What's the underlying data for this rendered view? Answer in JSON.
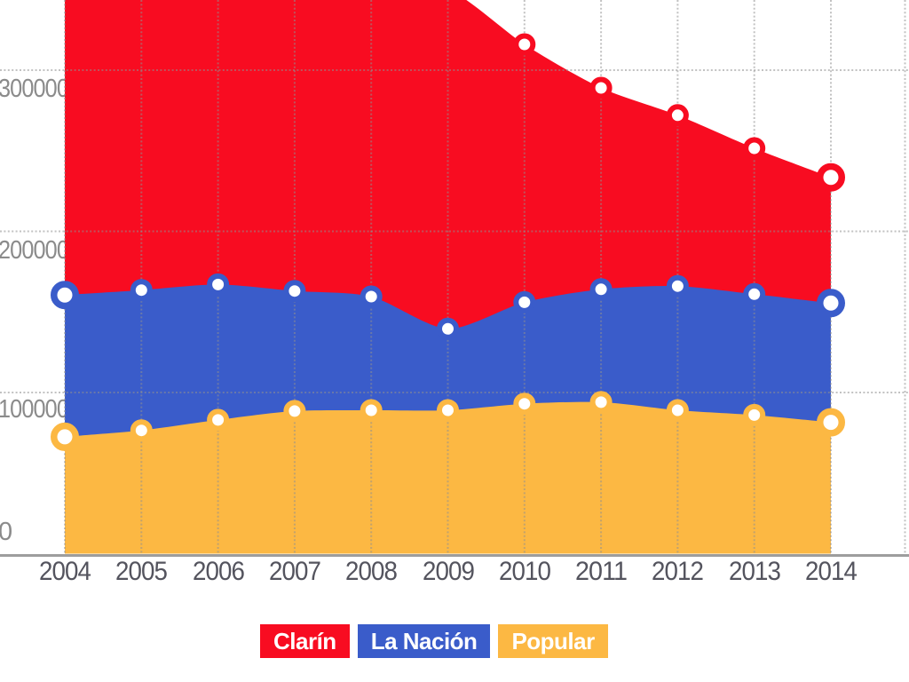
{
  "chart_data": {
    "type": "area",
    "stacked": false,
    "grid": true,
    "legend_position": "bottom",
    "x": [
      "2004",
      "2005",
      "2006",
      "2007",
      "2008",
      "2009",
      "2010",
      "2011",
      "2012",
      "2013",
      "2014"
    ],
    "series": [
      {
        "name": "Clarín",
        "color": "#F80C21",
        "values": [
          null,
          null,
          null,
          null,
          null,
          null,
          316000,
          289000,
          272000,
          251500,
          233500
        ]
      },
      {
        "name": "La Nación",
        "color": "#3A5CCA",
        "values": [
          160500,
          163500,
          167000,
          163000,
          159500,
          139500,
          156000,
          164000,
          166000,
          161000,
          155500
        ]
      },
      {
        "name": "Popular",
        "color": "#FCB843",
        "values": [
          72500,
          76500,
          83000,
          88500,
          89000,
          89000,
          93000,
          94000,
          89000,
          86000,
          81500
        ]
      }
    ],
    "y_ticks": [
      {
        "value": 0,
        "label": "0"
      },
      {
        "value": 100000,
        "label": "100000"
      },
      {
        "value": 200000,
        "label": "200000"
      },
      {
        "value": 300000,
        "label": "300000"
      }
    ],
    "ylim_visible": [
      0,
      342000
    ],
    "clipping_note": "Clarín 2004–2009 points lie above the cropped top edge of the plot",
    "offscreen_render_value": 350000,
    "marker_style": "white center with colored ring; first and last points larger"
  },
  "legend": {
    "items": [
      {
        "label": "Clarín",
        "color": "#F80C21"
      },
      {
        "label": "La Nación",
        "color": "#3A5CCA"
      },
      {
        "label": "Popular",
        "color": "#FCB843"
      }
    ]
  }
}
